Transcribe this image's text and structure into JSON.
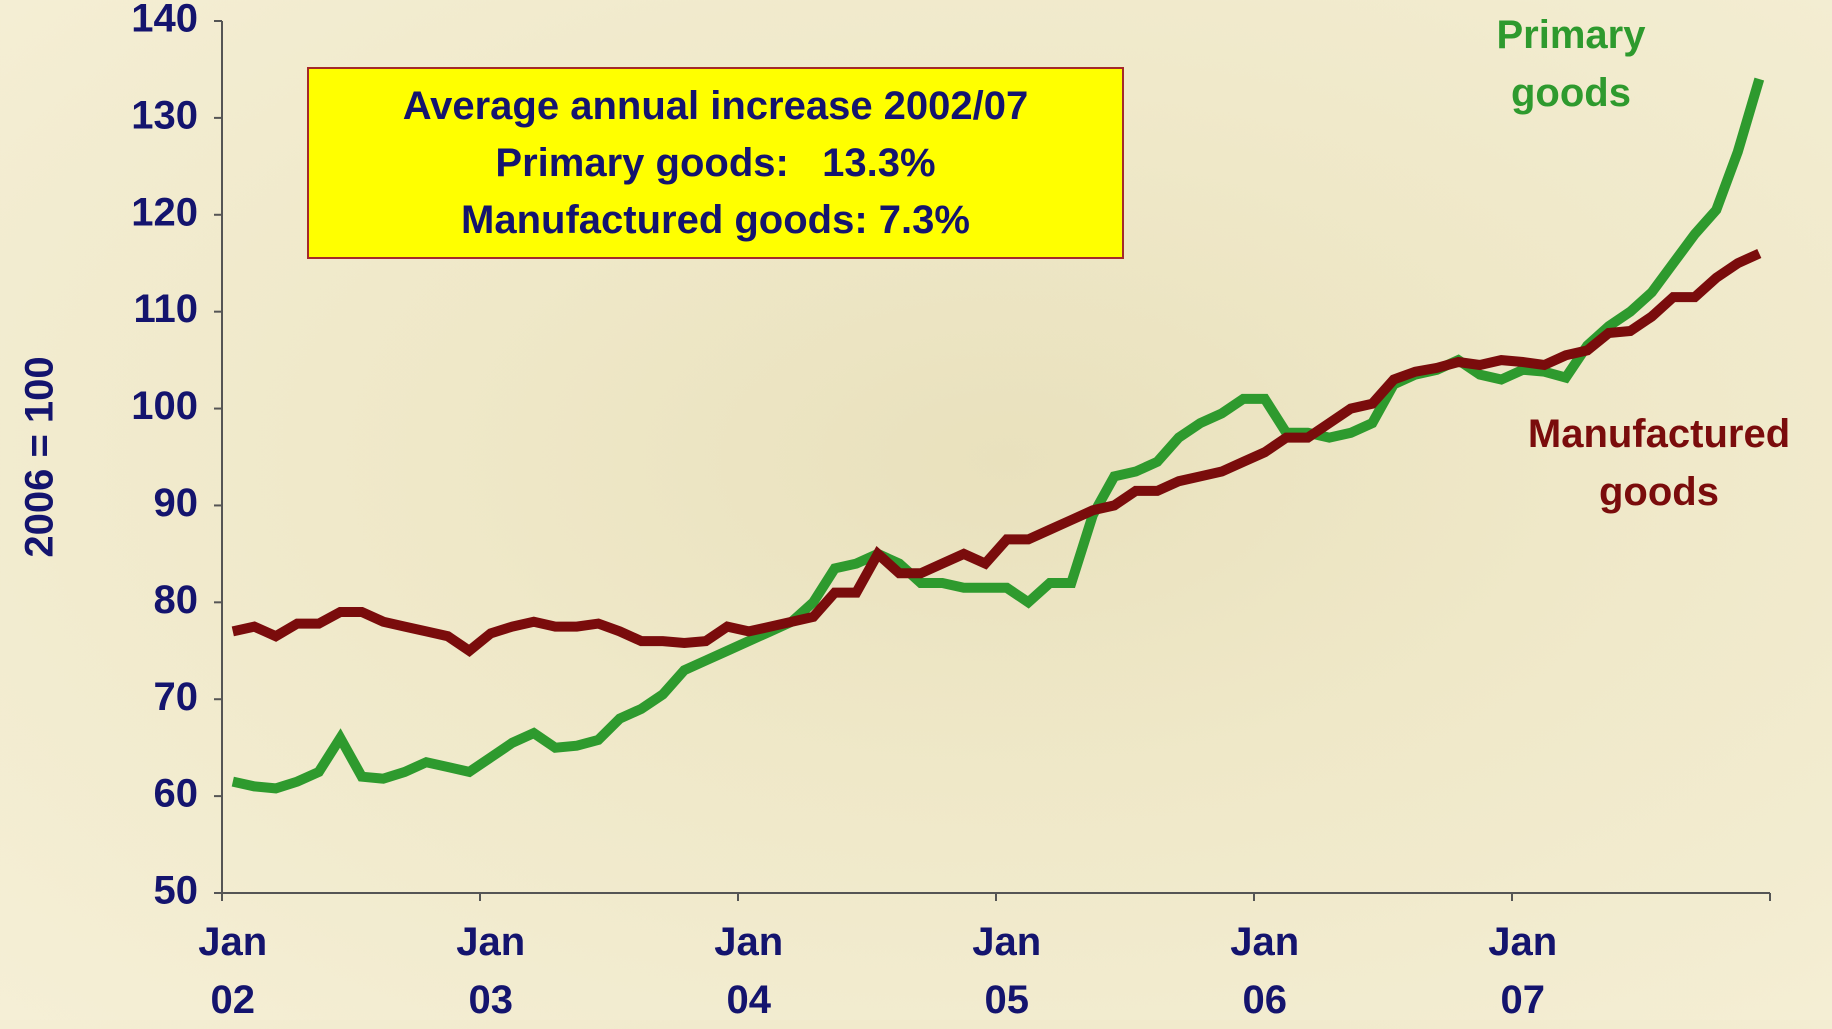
{
  "chart_data": {
    "type": "line",
    "ylabel": "2006 = 100",
    "annotation": [
      "Average annual increase 2002/07",
      "Primary goods:   13.3%",
      "Manufactured goods: 7.3%"
    ],
    "x": [
      "Jan 02",
      null,
      null,
      null,
      null,
      null,
      null,
      null,
      null,
      null,
      null,
      null,
      "Jan 03",
      null,
      null,
      null,
      null,
      null,
      null,
      null,
      null,
      null,
      null,
      null,
      "Jan 04",
      null,
      null,
      null,
      null,
      null,
      null,
      null,
      null,
      null,
      null,
      null,
      "Jan 05",
      null,
      null,
      null,
      null,
      null,
      null,
      null,
      null,
      null,
      null,
      null,
      "Jan 06",
      null,
      null,
      null,
      null,
      null,
      null,
      null,
      null,
      null,
      null,
      null,
      "Jan 07",
      null,
      null,
      null,
      null,
      null,
      null,
      null,
      null,
      null,
      null,
      null
    ],
    "series": [
      {
        "name": "Primary goods",
        "color": "#2e9a2e",
        "values": [
          61.5,
          61,
          60.8,
          61.5,
          62.5,
          66,
          62,
          61.8,
          62.5,
          63.5,
          63,
          62.5,
          64,
          65.5,
          66.5,
          65,
          65.2,
          65.8,
          68,
          69,
          70.5,
          73,
          74,
          75,
          76,
          77,
          78,
          80,
          83.5,
          84,
          85,
          84,
          82,
          82,
          81.5,
          81.5,
          81.5,
          80,
          82,
          82,
          89,
          93,
          93.5,
          94.5,
          97,
          98.5,
          99.5,
          101,
          101,
          97.5,
          97.5,
          97,
          97.5,
          98.5,
          102.5,
          103.5,
          104,
          105,
          103.5,
          103,
          104,
          103.8,
          103.2,
          106.5,
          108.5,
          110,
          112,
          115,
          118,
          120.5,
          126.5,
          134
        ]
      },
      {
        "name": "Manufactured goods",
        "color": "#7a0c0c",
        "values": [
          77,
          77.5,
          76.5,
          77.8,
          77.8,
          79,
          79,
          78,
          77.5,
          77,
          76.5,
          75,
          76.8,
          77.5,
          78,
          77.5,
          77.5,
          77.8,
          77,
          76,
          76,
          75.8,
          76,
          77.5,
          77,
          77.5,
          78,
          78.5,
          81,
          81,
          85,
          83,
          83,
          84,
          85,
          84,
          86.5,
          86.5,
          87.5,
          88.5,
          89.5,
          90,
          91.5,
          91.5,
          92.5,
          93,
          93.5,
          94.5,
          95.5,
          97,
          97,
          98.5,
          100,
          100.5,
          103,
          103.8,
          104.2,
          104.8,
          104.5,
          105,
          104.8,
          104.5,
          105.5,
          106,
          107.8,
          108,
          109.5,
          111.5,
          111.5,
          113.5,
          115,
          116
        ]
      }
    ],
    "ylim": [
      50,
      140
    ],
    "yticks": [
      50,
      60,
      70,
      80,
      90,
      100,
      110,
      120,
      130,
      140
    ]
  }
}
